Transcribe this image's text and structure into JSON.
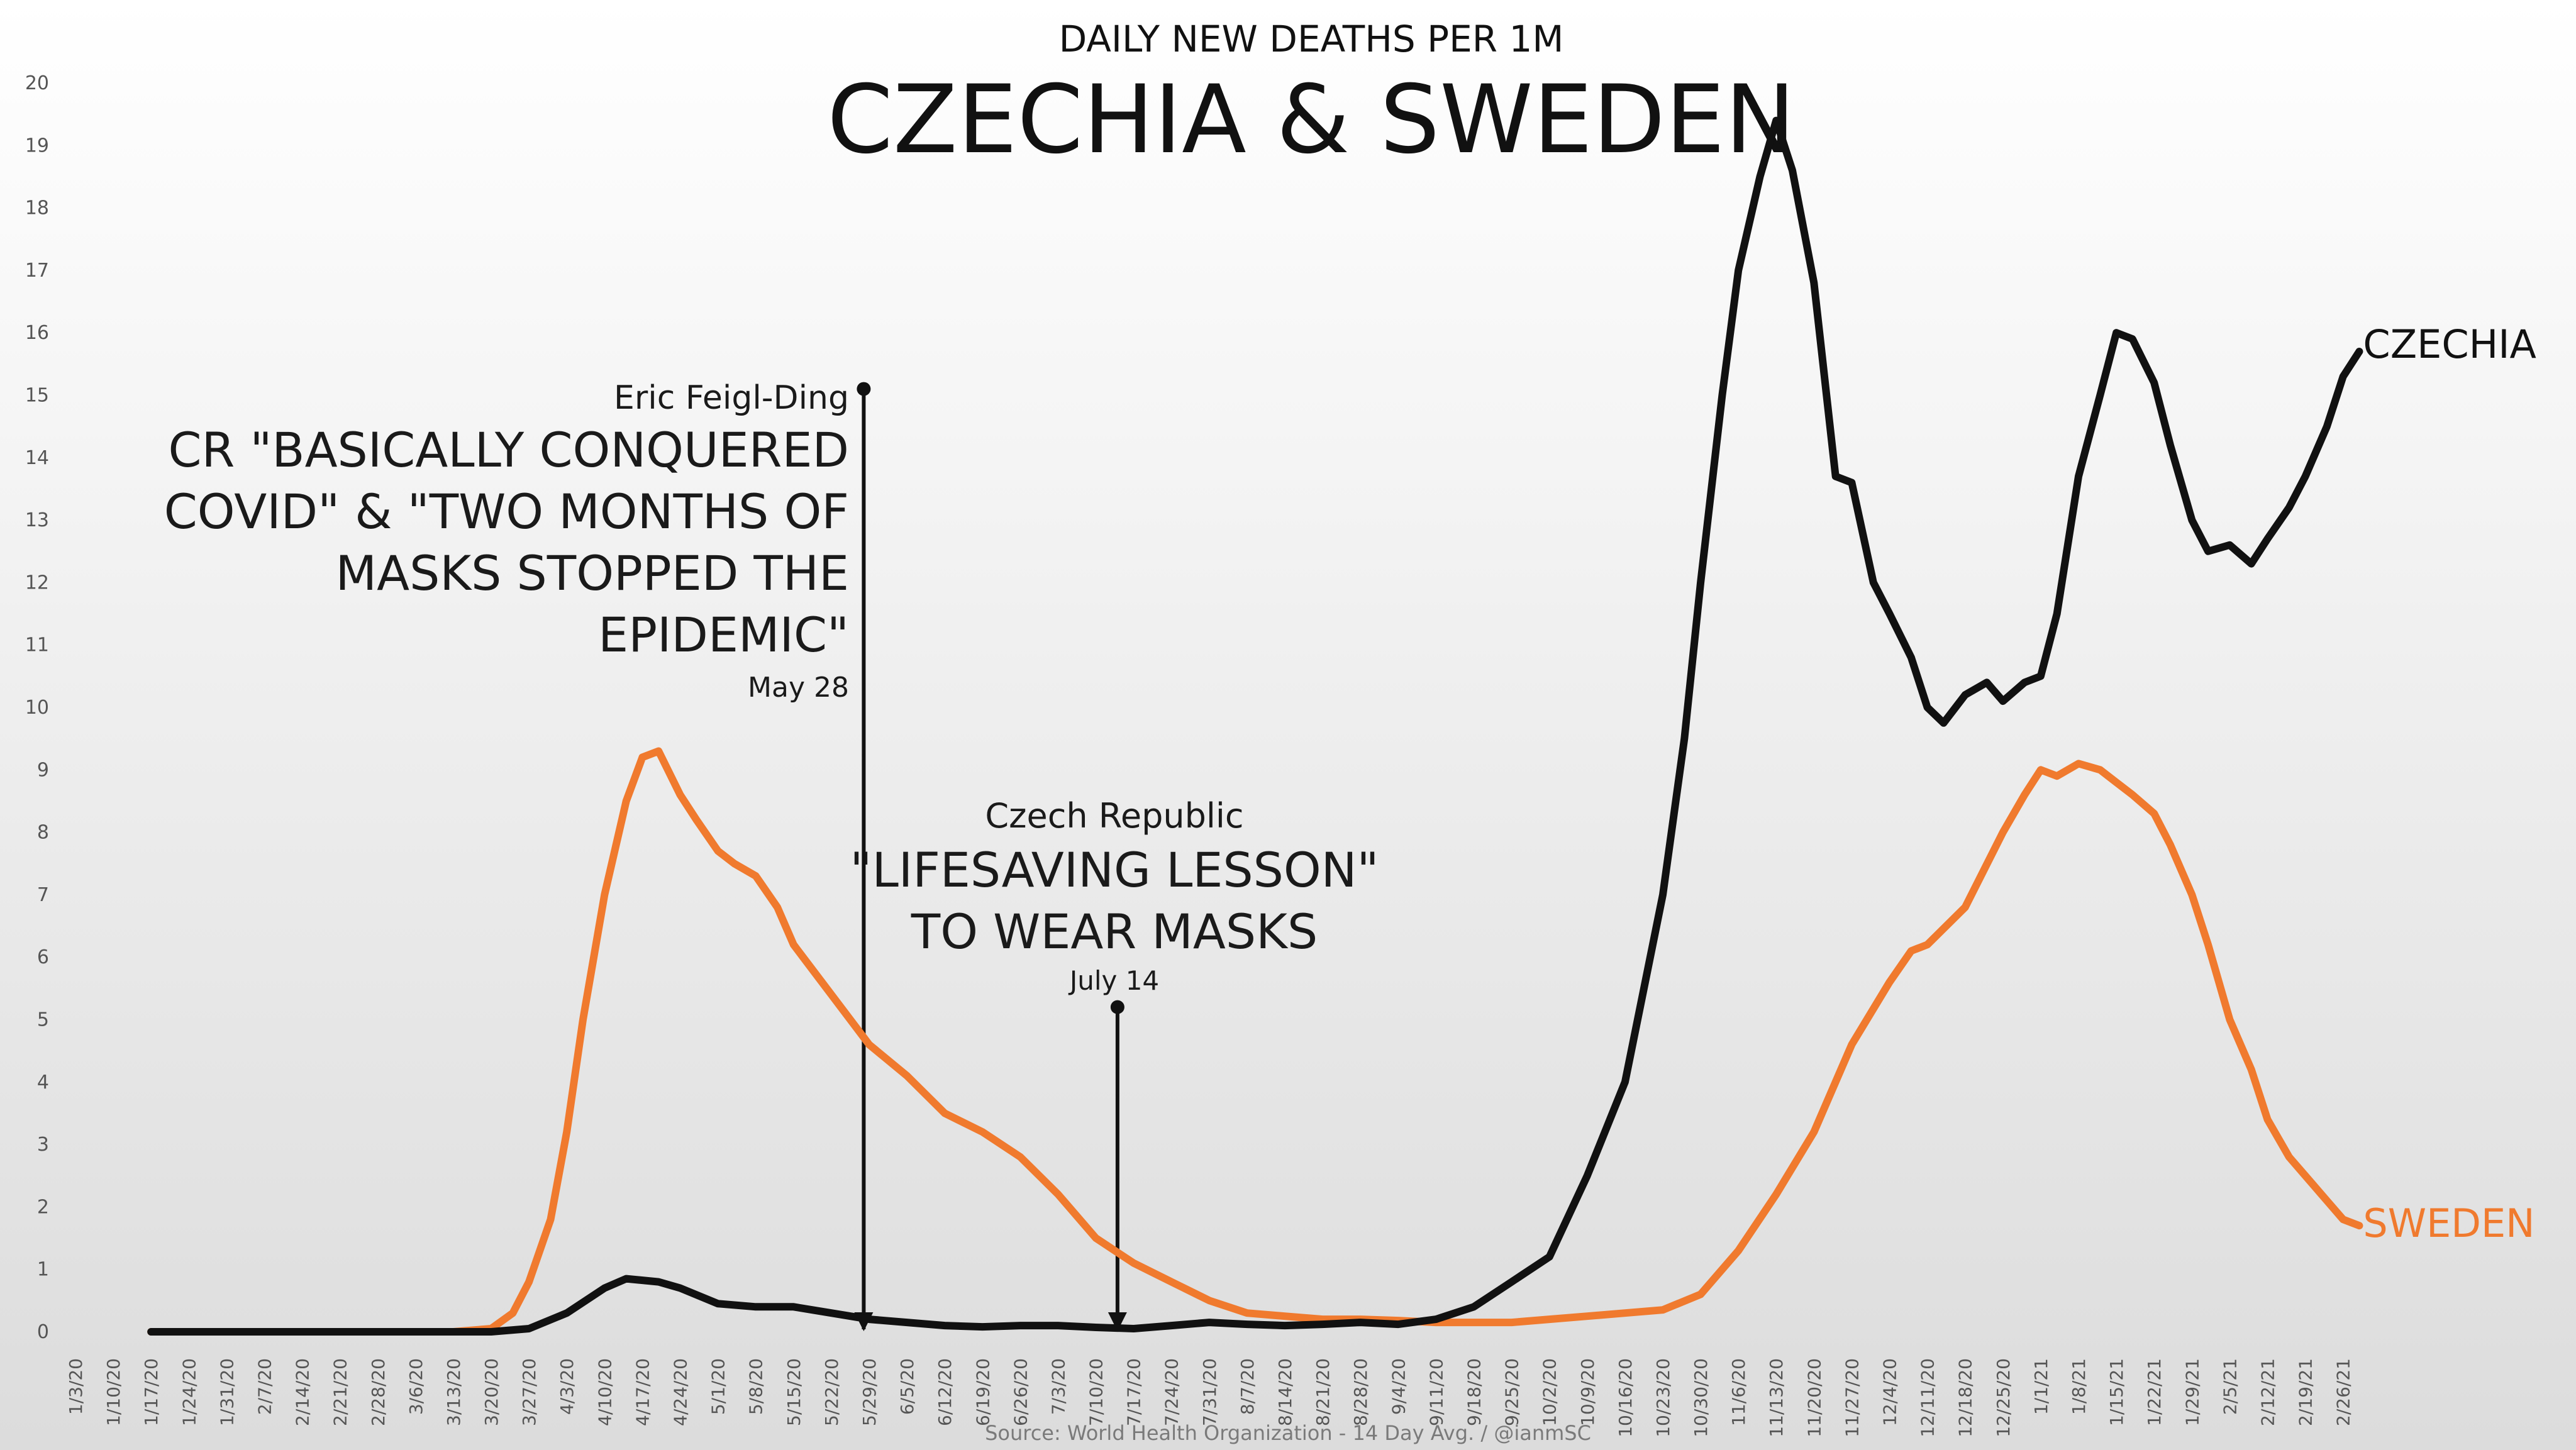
{
  "header": {
    "subtitle": "DAILY NEW DEATHS PER 1M",
    "title": "CZECHIA & SWEDEN"
  },
  "source": "Source: World Health Organization - 14 Day Avg. / @ianmSC",
  "colors": {
    "czechia": "#111111",
    "sweden": "#f07a2e",
    "background_top": "#ffffff",
    "background_bottom": "#dcdcdc"
  },
  "annotations": {
    "feigl": {
      "author": "Eric Feigl-Ding",
      "quote": [
        "CR \"BASICALLY CONQUERED",
        "COVID\" & \"TWO MONTHS OF",
        "MASKS STOPPED THE",
        "EPIDEMIC\""
      ],
      "date": "May 28"
    },
    "czech": {
      "author": "Czech Republic",
      "quote": [
        "\"LIFESAVING LESSON\"",
        "TO WEAR MASKS"
      ],
      "date": "July 14"
    }
  },
  "chart_data": {
    "type": "line",
    "title": "CZECHIA & SWEDEN",
    "subtitle": "DAILY NEW DEATHS PER 1M",
    "ylim": [
      0,
      20
    ],
    "yticks": [
      "0",
      "1",
      "2",
      "3",
      "4",
      "5",
      "6",
      "7",
      "8",
      "9",
      "10",
      "11",
      "12",
      "13",
      "14",
      "15",
      "16",
      "17",
      "18",
      "19",
      "20"
    ],
    "xticks": [
      "1/3/20",
      "1/10/20",
      "1/17/20",
      "1/24/20",
      "1/31/20",
      "2/7/20",
      "2/14/20",
      "2/21/20",
      "2/28/20",
      "3/6/20",
      "3/13/20",
      "3/20/20",
      "3/27/20",
      "4/3/20",
      "4/10/20",
      "4/17/20",
      "4/24/20",
      "5/1/20",
      "5/8/20",
      "5/15/20",
      "5/22/20",
      "5/29/20",
      "6/5/20",
      "6/12/20",
      "6/19/20",
      "6/26/20",
      "7/3/20",
      "7/10/20",
      "7/17/20",
      "7/24/20",
      "7/31/20",
      "8/7/20",
      "8/14/20",
      "8/21/20",
      "8/28/20",
      "9/4/20",
      "9/11/20",
      "9/18/20",
      "9/25/20",
      "10/2/20",
      "10/9/20",
      "10/16/20",
      "10/23/20",
      "10/30/20",
      "11/6/20",
      "11/13/20",
      "11/20/20",
      "11/27/20",
      "12/4/20",
      "12/11/20",
      "12/18/20",
      "12/25/20",
      "1/1/21",
      "1/8/21",
      "1/15/21",
      "1/22/21",
      "1/29/21",
      "2/5/21",
      "2/12/21",
      "2/19/21",
      "2/26/21"
    ],
    "grid": false,
    "legend": "direct labels at line ends",
    "series": [
      {
        "name": "CZECHIA",
        "points": [
          [
            "1/17/20",
            0
          ],
          [
            "3/13/20",
            0
          ],
          [
            "3/20/20",
            0
          ],
          [
            "3/27/20",
            0.05
          ],
          [
            "4/3/20",
            0.3
          ],
          [
            "4/10/20",
            0.7
          ],
          [
            "4/14/20",
            0.85
          ],
          [
            "4/20/20",
            0.8
          ],
          [
            "4/24/20",
            0.7
          ],
          [
            "5/1/20",
            0.45
          ],
          [
            "5/8/20",
            0.4
          ],
          [
            "5/15/20",
            0.4
          ],
          [
            "5/22/20",
            0.3
          ],
          [
            "5/29/20",
            0.2
          ],
          [
            "6/5/20",
            0.15
          ],
          [
            "6/12/20",
            0.1
          ],
          [
            "6/19/20",
            0.08
          ],
          [
            "6/26/20",
            0.1
          ],
          [
            "7/3/20",
            0.1
          ],
          [
            "7/10/20",
            0.07
          ],
          [
            "7/17/20",
            0.05
          ],
          [
            "7/24/20",
            0.1
          ],
          [
            "7/31/20",
            0.15
          ],
          [
            "8/7/20",
            0.12
          ],
          [
            "8/14/20",
            0.1
          ],
          [
            "8/21/20",
            0.12
          ],
          [
            "8/28/20",
            0.15
          ],
          [
            "9/4/20",
            0.12
          ],
          [
            "9/11/20",
            0.2
          ],
          [
            "9/18/20",
            0.4
          ],
          [
            "9/25/20",
            0.8
          ],
          [
            "10/2/20",
            1.2
          ],
          [
            "10/9/20",
            2.5
          ],
          [
            "10/16/20",
            4.0
          ],
          [
            "10/23/20",
            7.0
          ],
          [
            "10/27/20",
            9.5
          ],
          [
            "10/30/20",
            12.0
          ],
          [
            "11/3/20",
            15.0
          ],
          [
            "11/6/20",
            17.0
          ],
          [
            "11/10/20",
            18.5
          ],
          [
            "11/13/20",
            19.4
          ],
          [
            "11/16/20",
            18.6
          ],
          [
            "11/20/20",
            16.8
          ],
          [
            "11/24/20",
            13.7
          ],
          [
            "11/27/20",
            13.6
          ],
          [
            "12/1/20",
            12.0
          ],
          [
            "12/4/20",
            11.5
          ],
          [
            "12/8/20",
            10.8
          ],
          [
            "12/11/20",
            10.0
          ],
          [
            "12/14/20",
            9.75
          ],
          [
            "12/18/20",
            10.2
          ],
          [
            "12/22/20",
            10.4
          ],
          [
            "12/25/20",
            10.1
          ],
          [
            "12/29/20",
            10.4
          ],
          [
            "1/1/21",
            10.5
          ],
          [
            "1/4/21",
            11.5
          ],
          [
            "1/8/21",
            13.7
          ],
          [
            "1/12/21",
            15.0
          ],
          [
            "1/15/21",
            16.0
          ],
          [
            "1/18/21",
            15.9
          ],
          [
            "1/22/21",
            15.2
          ],
          [
            "1/25/21",
            14.2
          ],
          [
            "1/29/21",
            13.0
          ],
          [
            "2/1/21",
            12.5
          ],
          [
            "2/5/21",
            12.6
          ],
          [
            "2/9/21",
            12.3
          ],
          [
            "2/12/21",
            12.7
          ],
          [
            "2/16/21",
            13.2
          ],
          [
            "2/19/21",
            13.7
          ],
          [
            "2/23/21",
            14.5
          ],
          [
            "2/26/21",
            15.3
          ],
          [
            "3/1/21",
            15.7
          ]
        ]
      },
      {
        "name": "SWEDEN",
        "points": [
          [
            "1/17/20",
            0
          ],
          [
            "3/13/20",
            0
          ],
          [
            "3/20/20",
            0.05
          ],
          [
            "3/24/20",
            0.3
          ],
          [
            "3/27/20",
            0.8
          ],
          [
            "3/31/20",
            1.8
          ],
          [
            "4/3/20",
            3.2
          ],
          [
            "4/6/20",
            5.0
          ],
          [
            "4/10/20",
            7.0
          ],
          [
            "4/14/20",
            8.5
          ],
          [
            "4/17/20",
            9.2
          ],
          [
            "4/20/20",
            9.3
          ],
          [
            "4/24/20",
            8.6
          ],
          [
            "4/27/20",
            8.2
          ],
          [
            "5/1/20",
            7.7
          ],
          [
            "5/4/20",
            7.5
          ],
          [
            "5/8/20",
            7.3
          ],
          [
            "5/12/20",
            6.8
          ],
          [
            "5/15/20",
            6.2
          ],
          [
            "5/22/20",
            5.4
          ],
          [
            "5/29/20",
            4.6
          ],
          [
            "6/5/20",
            4.1
          ],
          [
            "6/12/20",
            3.5
          ],
          [
            "6/19/20",
            3.2
          ],
          [
            "6/26/20",
            2.8
          ],
          [
            "7/3/20",
            2.2
          ],
          [
            "7/10/20",
            1.5
          ],
          [
            "7/17/20",
            1.1
          ],
          [
            "7/24/20",
            0.8
          ],
          [
            "7/31/20",
            0.5
          ],
          [
            "8/7/20",
            0.3
          ],
          [
            "8/14/20",
            0.25
          ],
          [
            "8/21/20",
            0.2
          ],
          [
            "8/28/20",
            0.2
          ],
          [
            "9/4/20",
            0.18
          ],
          [
            "9/11/20",
            0.15
          ],
          [
            "9/18/20",
            0.15
          ],
          [
            "9/25/20",
            0.15
          ],
          [
            "10/2/20",
            0.2
          ],
          [
            "10/9/20",
            0.25
          ],
          [
            "10/16/20",
            0.3
          ],
          [
            "10/23/20",
            0.35
          ],
          [
            "10/30/20",
            0.6
          ],
          [
            "11/6/20",
            1.3
          ],
          [
            "11/13/20",
            2.2
          ],
          [
            "11/20/20",
            3.2
          ],
          [
            "11/27/20",
            4.6
          ],
          [
            "12/4/20",
            5.6
          ],
          [
            "12/8/20",
            6.1
          ],
          [
            "12/11/20",
            6.2
          ],
          [
            "12/18/20",
            6.8
          ],
          [
            "12/25/20",
            8.0
          ],
          [
            "12/29/20",
            8.6
          ],
          [
            "1/1/21",
            9.0
          ],
          [
            "1/4/21",
            8.9
          ],
          [
            "1/8/21",
            9.1
          ],
          [
            "1/12/21",
            9.0
          ],
          [
            "1/15/21",
            8.8
          ],
          [
            "1/18/21",
            8.6
          ],
          [
            "1/22/21",
            8.3
          ],
          [
            "1/25/21",
            7.8
          ],
          [
            "1/29/21",
            7.0
          ],
          [
            "2/1/21",
            6.2
          ],
          [
            "2/5/21",
            5.0
          ],
          [
            "2/9/21",
            4.2
          ],
          [
            "2/12/21",
            3.4
          ],
          [
            "2/16/21",
            2.8
          ],
          [
            "2/19/21",
            2.5
          ],
          [
            "2/23/21",
            2.1
          ],
          [
            "2/26/21",
            1.8
          ],
          [
            "3/1/21",
            1.7
          ]
        ]
      }
    ],
    "annotation_markers": [
      {
        "date": "5/28/20",
        "top_value": 15.1
      },
      {
        "date": "7/14/20",
        "top_value": 5.2
      }
    ]
  }
}
